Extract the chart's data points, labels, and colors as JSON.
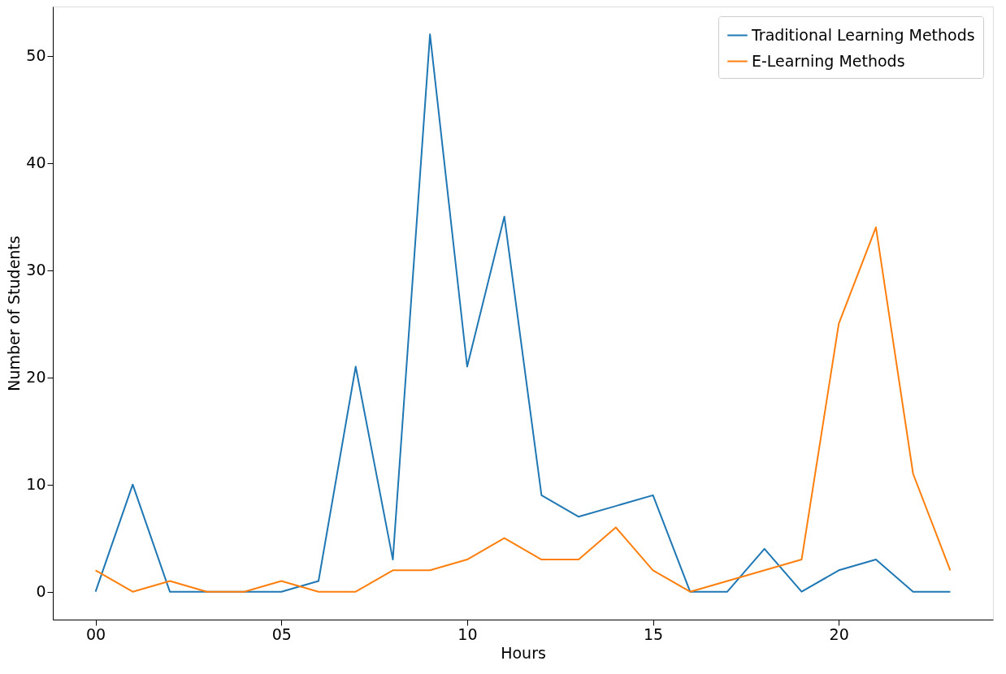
{
  "chart_data": {
    "type": "line",
    "xlabel": "Hours",
    "ylabel": "Number of Students",
    "x": [
      0,
      1,
      2,
      3,
      4,
      5,
      6,
      7,
      8,
      9,
      10,
      11,
      12,
      13,
      14,
      15,
      16,
      17,
      18,
      19,
      20,
      21,
      22,
      23
    ],
    "series": [
      {
        "name": "Traditional Learning Methods",
        "color": "#1f77b4",
        "values": [
          0,
          10,
          0,
          0,
          0,
          0,
          1,
          21,
          3,
          52,
          21,
          35,
          9,
          7,
          8,
          9,
          0,
          0,
          4,
          0,
          2,
          3,
          0,
          0
        ]
      },
      {
        "name": "E-Learning Methods",
        "color": "#ff7f0e",
        "values": [
          2,
          0,
          1,
          0,
          0,
          1,
          0,
          0,
          2,
          2,
          3,
          5,
          3,
          3,
          6,
          2,
          0,
          1,
          2,
          3,
          25,
          34,
          11,
          2
        ]
      }
    ],
    "xlim": [
      -1.15,
      24.15
    ],
    "ylim": [
      -2.6,
      54.6
    ],
    "xticks": [
      {
        "value": 0,
        "label": "00"
      },
      {
        "value": 5,
        "label": "05"
      },
      10,
      15,
      20
    ],
    "yticks": [
      0,
      10,
      20,
      30,
      40,
      50
    ],
    "grid": false,
    "legend": "top right",
    "marker": "none",
    "line_style": "solid"
  }
}
